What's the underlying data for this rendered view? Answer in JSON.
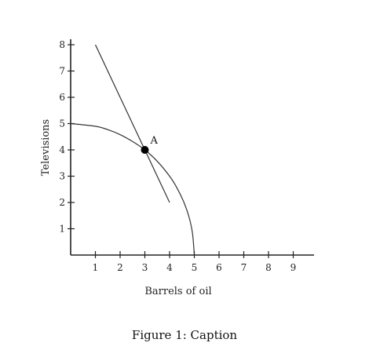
{
  "chart_data": {
    "type": "line",
    "xlabel": "Barrels of oil",
    "ylabel": "Televisions",
    "xlim": [
      0,
      9.5
    ],
    "ylim": [
      0,
      8.6
    ],
    "x_ticks": [
      1,
      2,
      3,
      4,
      5,
      6,
      7,
      8,
      9
    ],
    "y_ticks": [
      1,
      2,
      3,
      4,
      5,
      6,
      7,
      8
    ],
    "grid": false,
    "series": [
      {
        "kind": "ppf-curve",
        "points": [
          [
            0,
            5
          ],
          [
            1,
            4.9
          ],
          [
            1.5,
            4.77
          ],
          [
            2,
            4.58
          ],
          [
            2.5,
            4.32
          ],
          [
            3,
            4
          ],
          [
            3.5,
            3.57
          ],
          [
            4,
            3
          ],
          [
            4.3,
            2.55
          ],
          [
            4.6,
            1.96
          ],
          [
            4.8,
            1.4
          ],
          [
            4.93,
            0.8
          ],
          [
            5,
            0
          ]
        ]
      },
      {
        "kind": "tangent-line",
        "points": [
          [
            1,
            8
          ],
          [
            4,
            2
          ]
        ]
      }
    ],
    "annotations": [
      {
        "label": "A",
        "x": 3,
        "y": 4
      }
    ]
  },
  "caption": "Figure 1: Caption"
}
